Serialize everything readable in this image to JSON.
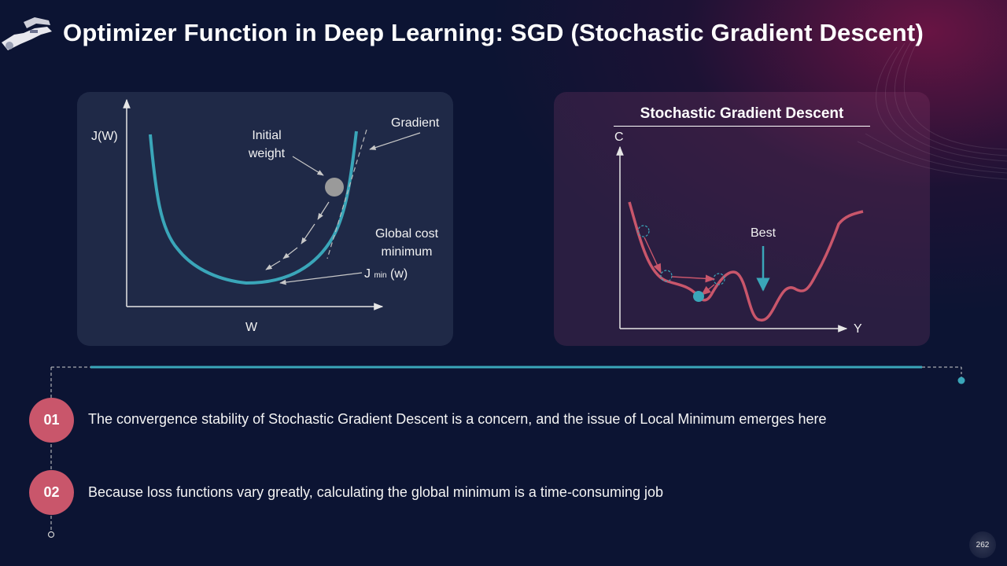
{
  "header": {
    "title": "Optimizer Function in Deep Learning: SGD (Stochastic Gradient Descent)",
    "logo_icon": "robot-hand-icon"
  },
  "left_diagram": {
    "y_axis_label": "J(W)",
    "x_axis_label": "W",
    "initial_weight_label": "Initial weight",
    "gradient_label": "Gradient",
    "global_cost_label": "Global cost minimum",
    "jmin_main": "J",
    "jmin_sub": "min",
    "jmin_arg": "(w)",
    "curve_color": "#3aa6b9"
  },
  "right_diagram": {
    "title": "Stochastic Gradient Descent",
    "y_axis_label": "C",
    "x_axis_label": "Y",
    "best_label": "Best",
    "curve_color": "#c9566b",
    "marker_color": "#3aa6b9"
  },
  "points": [
    {
      "number": "01",
      "text": "The convergence stability of Stochastic Gradient Descent is a concern, and the issue of Local Minimum emerges here"
    },
    {
      "number": "02",
      "text": "Because loss functions vary greatly, calculating the global minimum is a time-consuming job"
    }
  ],
  "page_number": "262"
}
